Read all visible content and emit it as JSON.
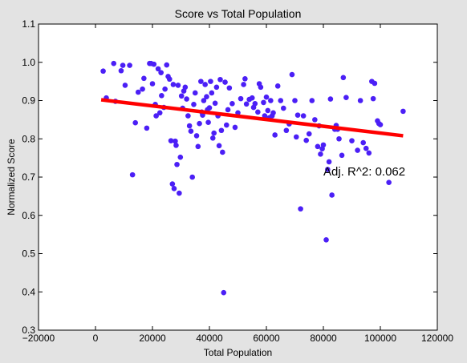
{
  "chart_data": {
    "type": "scatter",
    "title": "Score vs Total Population",
    "xlabel": "Total Population",
    "ylabel": "Normalized Score",
    "xlim": [
      -20000,
      120000
    ],
    "ylim": [
      0.3,
      1.1
    ],
    "xticks": [
      -20000,
      0,
      20000,
      40000,
      60000,
      80000,
      100000,
      120000
    ],
    "xtick_labels": [
      "−20000",
      "0",
      "20000",
      "40000",
      "60000",
      "80000",
      "100000",
      "120000"
    ],
    "yticks": [
      0.3,
      0.4,
      0.5,
      0.6,
      0.7,
      0.8,
      0.9,
      1.0,
      1.1
    ],
    "ytick_labels": [
      "0.3",
      "0.4",
      "0.5",
      "0.6",
      "0.7",
      "0.8",
      "0.9",
      "1.0",
      "1.1"
    ],
    "grid": false,
    "annotation": "Adj. R^2: 0.062",
    "colors": {
      "points": "#4b1ff6",
      "fit_line": "#ff0000",
      "plot_background": "#ffffff",
      "figure_background": "#e3e3e3"
    },
    "fit_line": {
      "x": [
        2000,
        108000
      ],
      "y": [
        0.902,
        0.808
      ]
    },
    "series": [
      {
        "points": [
          [
            2700,
            0.977
          ],
          [
            3800,
            0.907
          ],
          [
            6400,
            0.997
          ],
          [
            7000,
            0.898
          ],
          [
            9000,
            0.978
          ],
          [
            9600,
            0.992
          ],
          [
            10400,
            0.94
          ],
          [
            12000,
            0.992
          ],
          [
            13000,
            0.706
          ],
          [
            14000,
            0.842
          ],
          [
            15000,
            0.922
          ],
          [
            16500,
            0.93
          ],
          [
            17000,
            0.958
          ],
          [
            18000,
            0.828
          ],
          [
            19000,
            0.997
          ],
          [
            19500,
            0.997
          ],
          [
            20000,
            0.944
          ],
          [
            20500,
            0.995
          ],
          [
            21000,
            0.89
          ],
          [
            21300,
            0.86
          ],
          [
            22000,
            0.983
          ],
          [
            22600,
            0.868
          ],
          [
            23000,
            0.973
          ],
          [
            23200,
            0.913
          ],
          [
            24000,
            0.882
          ],
          [
            24400,
            0.93
          ],
          [
            25000,
            0.993
          ],
          [
            25500,
            0.963
          ],
          [
            26000,
            0.956
          ],
          [
            26500,
            0.795
          ],
          [
            27000,
            0.682
          ],
          [
            27300,
            0.942
          ],
          [
            27600,
            0.67
          ],
          [
            28000,
            0.794
          ],
          [
            28300,
            0.783
          ],
          [
            28600,
            0.733
          ],
          [
            29000,
            0.94
          ],
          [
            29400,
            0.658
          ],
          [
            29800,
            0.752
          ],
          [
            30200,
            0.912
          ],
          [
            30600,
            0.88
          ],
          [
            31000,
            0.925
          ],
          [
            31500,
            0.935
          ],
          [
            32000,
            0.904
          ],
          [
            32500,
            0.86
          ],
          [
            33000,
            0.834
          ],
          [
            33500,
            0.82
          ],
          [
            34000,
            0.7
          ],
          [
            34500,
            0.89
          ],
          [
            35000,
            0.92
          ],
          [
            35500,
            0.808
          ],
          [
            36000,
            0.78
          ],
          [
            36500,
            0.84
          ],
          [
            37000,
            0.95
          ],
          [
            37300,
            0.87
          ],
          [
            37600,
            0.862
          ],
          [
            38000,
            0.9
          ],
          [
            38500,
            0.942
          ],
          [
            39000,
            0.91
          ],
          [
            39300,
            0.876
          ],
          [
            39600,
            0.843
          ],
          [
            40000,
            0.881
          ],
          [
            40400,
            0.95
          ],
          [
            40800,
            0.92
          ],
          [
            41200,
            0.802
          ],
          [
            41600,
            0.815
          ],
          [
            42000,
            0.893
          ],
          [
            42500,
            0.935
          ],
          [
            43000,
            0.86
          ],
          [
            43400,
            0.782
          ],
          [
            43800,
            0.955
          ],
          [
            44200,
            0.822
          ],
          [
            44600,
            0.765
          ],
          [
            45000,
            0.398
          ],
          [
            45500,
            0.948
          ],
          [
            46000,
            0.836
          ],
          [
            46500,
            0.876
          ],
          [
            47000,
            0.933
          ],
          [
            48000,
            0.892
          ],
          [
            49000,
            0.83
          ],
          [
            50000,
            0.868
          ],
          [
            51000,
            0.905
          ],
          [
            52000,
            0.942
          ],
          [
            52500,
            0.957
          ],
          [
            53000,
            0.891
          ],
          [
            54000,
            0.903
          ],
          [
            55000,
            0.907
          ],
          [
            55500,
            0.882
          ],
          [
            56000,
            0.892
          ],
          [
            57000,
            0.87
          ],
          [
            57500,
            0.944
          ],
          [
            58000,
            0.935
          ],
          [
            59000,
            0.895
          ],
          [
            59400,
            0.86
          ],
          [
            60000,
            0.909
          ],
          [
            60500,
            0.874
          ],
          [
            61000,
            0.855
          ],
          [
            61500,
            0.9
          ],
          [
            62000,
            0.86
          ],
          [
            62400,
            0.868
          ],
          [
            63000,
            0.81
          ],
          [
            64000,
            0.938
          ],
          [
            65000,
            0.9
          ],
          [
            66000,
            0.88
          ],
          [
            67000,
            0.822
          ],
          [
            68000,
            0.839
          ],
          [
            69000,
            0.968
          ],
          [
            70000,
            0.9
          ],
          [
            70500,
            0.805
          ],
          [
            71000,
            0.862
          ],
          [
            72000,
            0.617
          ],
          [
            73000,
            0.86
          ],
          [
            74000,
            0.796
          ],
          [
            75000,
            0.813
          ],
          [
            76000,
            0.9
          ],
          [
            77000,
            0.85
          ],
          [
            78000,
            0.78
          ],
          [
            78500,
            0.834
          ],
          [
            79000,
            0.76
          ],
          [
            79600,
            0.774
          ],
          [
            80000,
            0.784
          ],
          [
            81000,
            0.536
          ],
          [
            81500,
            0.72
          ],
          [
            82000,
            0.74
          ],
          [
            82500,
            0.904
          ],
          [
            83000,
            0.653
          ],
          [
            84000,
            0.825
          ],
          [
            84500,
            0.835
          ],
          [
            85000,
            0.825
          ],
          [
            85500,
            0.8
          ],
          [
            86500,
            0.757
          ],
          [
            87000,
            0.96
          ],
          [
            88000,
            0.908
          ],
          [
            90000,
            0.795
          ],
          [
            92000,
            0.77
          ],
          [
            93000,
            0.9
          ],
          [
            94000,
            0.79
          ],
          [
            95000,
            0.775
          ],
          [
            96000,
            0.763
          ],
          [
            97000,
            0.95
          ],
          [
            97500,
            0.905
          ],
          [
            98000,
            0.945
          ],
          [
            99000,
            0.847
          ],
          [
            99500,
            0.84
          ],
          [
            100000,
            0.837
          ],
          [
            103000,
            0.686
          ],
          [
            108000,
            0.872
          ]
        ]
      }
    ]
  }
}
